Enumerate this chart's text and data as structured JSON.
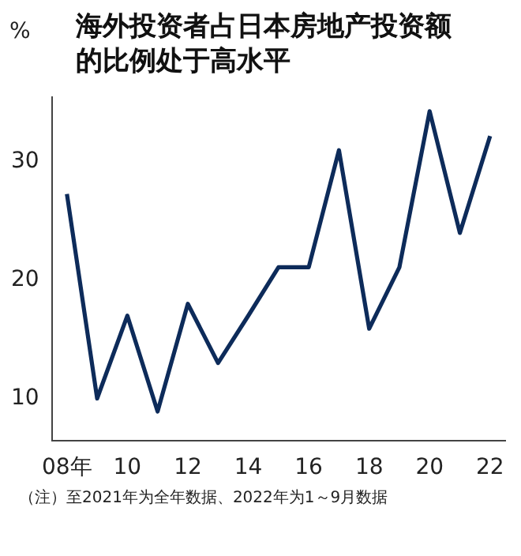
{
  "chart_data": {
    "type": "line",
    "title": "海外投资者占日本房地产投资额的比例处于高水平",
    "ylabel": "%",
    "categories": [
      "08年",
      null,
      "10",
      null,
      "12",
      null,
      "14",
      null,
      "16",
      null,
      "18",
      null,
      "20",
      null,
      "22"
    ],
    "series": [
      {
        "color": "#0d2b5a",
        "values": [
          27.3,
          10.0,
          17.0,
          8.9,
          18.0,
          13.0,
          17.0,
          21.1,
          21.1,
          31.0,
          15.9,
          21.1,
          34.3,
          24.0,
          32.2
        ]
      }
    ],
    "ylim": [
      6.4,
      35.5
    ],
    "yticks": [
      10,
      20,
      30
    ],
    "grid": false,
    "legend": false,
    "marker": "none",
    "line_style": "solid",
    "annotations": [
      "（注）至2021年为全年数据、2022年为1～9月数据"
    ]
  }
}
